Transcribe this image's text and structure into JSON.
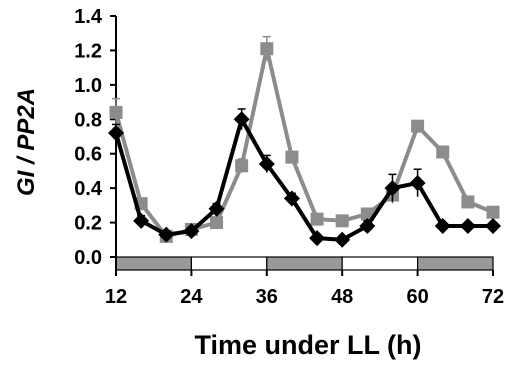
{
  "chart_data": {
    "type": "line",
    "xlabel": "Time under LL (h)",
    "ylabel_parts": [
      "GI",
      " / ",
      "PP2A"
    ],
    "xlim": [
      12,
      72
    ],
    "ylim": [
      0,
      1.4
    ],
    "x_ticks": [
      12,
      24,
      36,
      48,
      60,
      72
    ],
    "y_ticks": [
      0.0,
      0.2,
      0.4,
      0.6,
      0.8,
      1.0,
      1.2,
      1.4
    ],
    "grid": false,
    "x": [
      12,
      16,
      20,
      24,
      28,
      32,
      36,
      40,
      44,
      48,
      52,
      56,
      60,
      64,
      68,
      72
    ],
    "series": [
      {
        "color": "#000000",
        "marker": "diamond",
        "values": [
          0.72,
          0.21,
          0.13,
          0.15,
          0.28,
          0.8,
          0.54,
          0.34,
          0.11,
          0.1,
          0.18,
          0.4,
          0.43,
          0.18,
          0.18,
          0.18
        ],
        "errors": [
          0.05,
          0.03,
          0.02,
          0.02,
          0.03,
          0.06,
          0.05,
          0.03,
          0.02,
          0.02,
          0.03,
          0.08,
          0.08,
          0.02,
          0.02,
          0.02
        ]
      },
      {
        "color": "#8c8c8c",
        "marker": "square",
        "values": [
          0.84,
          0.31,
          0.12,
          0.16,
          0.2,
          0.53,
          1.21,
          0.58,
          0.22,
          0.21,
          0.25,
          0.36,
          0.76,
          0.61,
          0.32,
          0.26
        ],
        "errors": [
          0.08,
          0.03,
          0.02,
          0.02,
          0.02,
          0.04,
          0.07,
          0.03,
          0.02,
          0.02,
          0.02,
          0.05,
          0.03,
          0.03,
          0.02,
          0.02
        ]
      }
    ],
    "light_bar": [
      {
        "start": 12,
        "end": 24,
        "state": "dark"
      },
      {
        "start": 24,
        "end": 36,
        "state": "light"
      },
      {
        "start": 36,
        "end": 48,
        "state": "dark"
      },
      {
        "start": 48,
        "end": 60,
        "state": "light"
      },
      {
        "start": 60,
        "end": 72,
        "state": "dark"
      }
    ]
  }
}
